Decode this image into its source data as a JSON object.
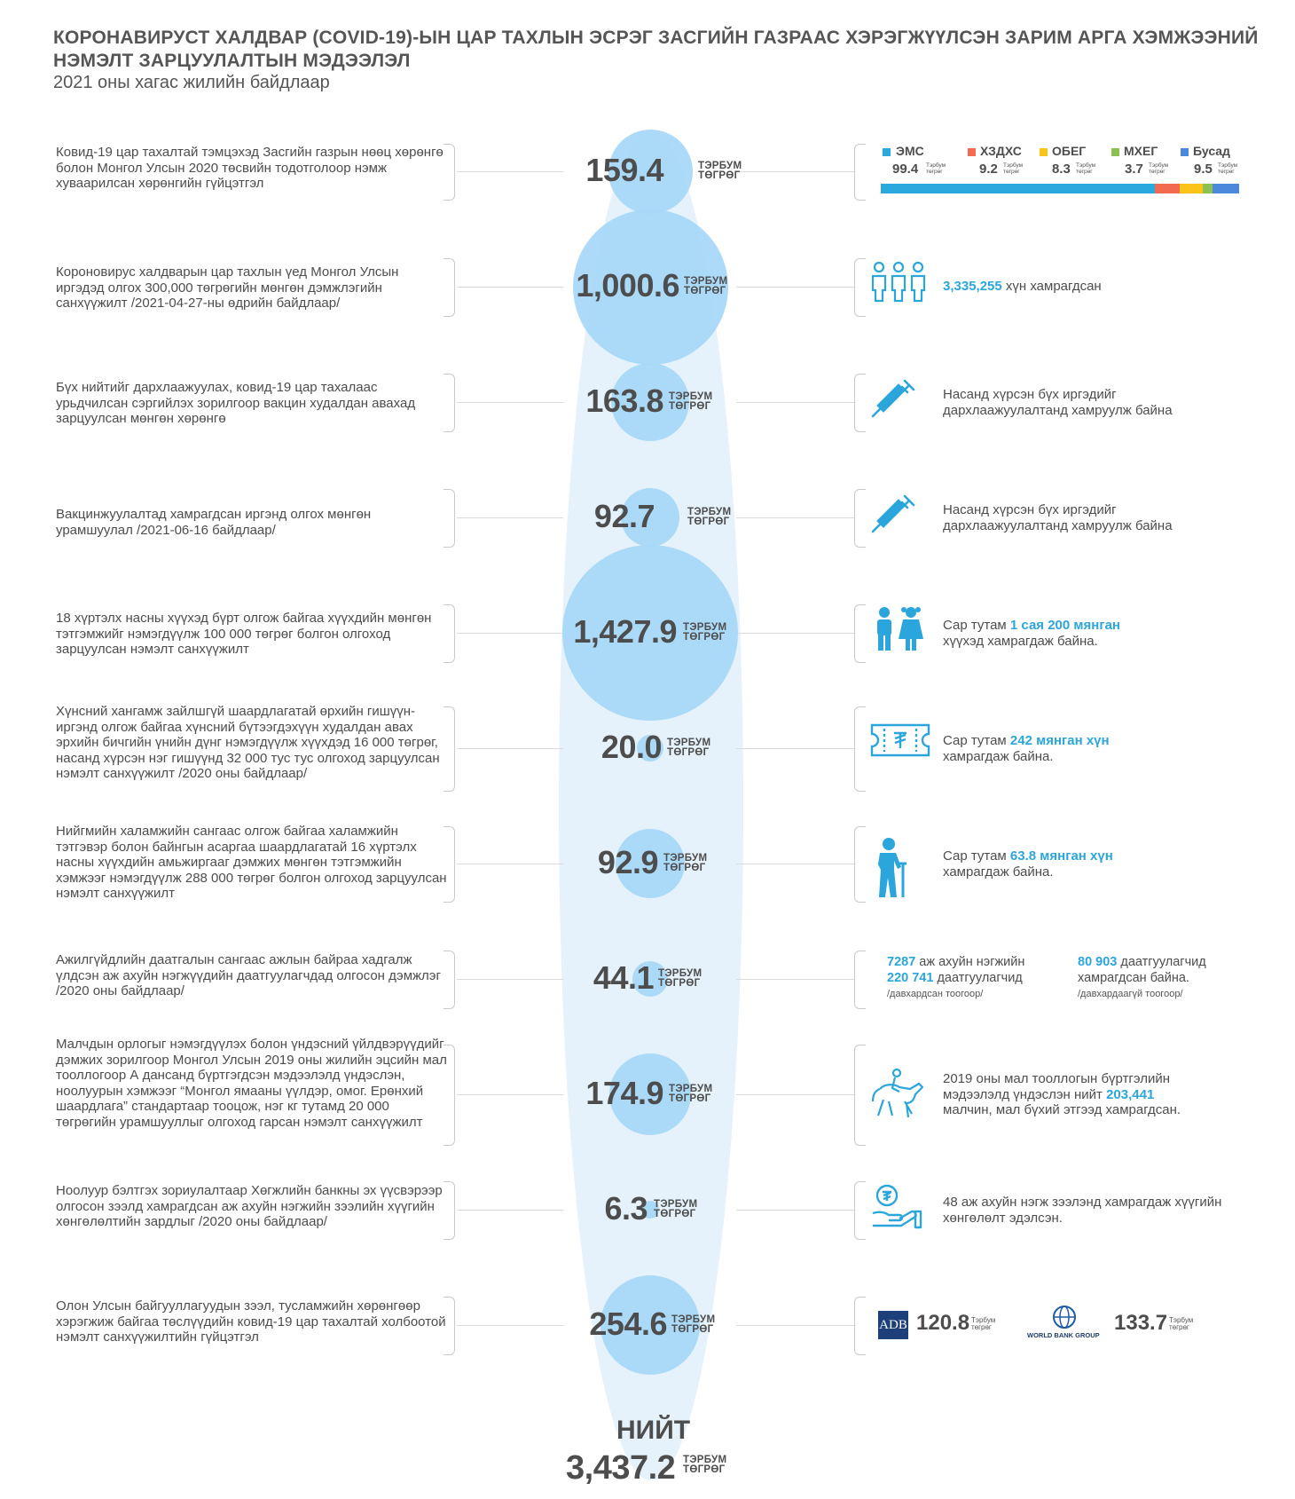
{
  "title": "КОРОНАВИРУСТ ХАЛДВАР (COVID-19)-ЫН ЦАР ТАХЛЫН ЭСРЭГ ЗАСГИЙН ГАЗРААС ХЭРЭГЖҮҮЛСЭН ЗАРИМ АРГА ХЭМЖЭЭНИЙ НЭМЭЛТ ЗАРЦУУЛАЛТЫН МЭДЭЭЛЭЛ",
  "subtitle": "2021 оны хагас жилийн байдлаар",
  "unit_top": "ТЭРБУМ",
  "unit_bottom": "ТӨГРӨГ",
  "unit_small_top": "Тэрбум",
  "unit_small_bottom": "төгрөг",
  "colors": {
    "accent": "#2ba6dc",
    "bubble": "#a8d8f8",
    "ellipse": "#e5f2fb",
    "text": "#4d4d4d"
  },
  "rows": [
    {
      "desc": "Ковид-19 цар тахалтай тэмцэхэд Засгийн газрын нөөц хөрөнгө болон Монгол Улсын 2020 төсвийн тодотголоор нэмж хуваарилсан хөрөнгийн гүйцэтгэл",
      "value": "159.4",
      "amount": 159.4
    },
    {
      "desc": "Короновирус халдварын цар тахлын үед Монгол Улсын иргэдэд олгох 300,000 төгрөгийн мөнгөн дэмжлэгийн санхүүжилт /2021-04-27-ны өдрийн байдлаар/",
      "value": "1,000.6",
      "amount": 1000.6,
      "right_hl": "3,335,255",
      "right_text": " хүн хамрагдсан",
      "icon": "people-icon"
    },
    {
      "desc": "Бүх нийтийг дархлаажуулах, ковид-19 цар тахалаас урьдчилсан сэргийлэх зорилгоор вакцин худалдан авахад зарцуулсан мөнгөн хөрөнгө",
      "value": "163.8",
      "amount": 163.8,
      "right_text": "Насанд хүрсэн бүх иргэдийг дархлаажуулалтанд хамруулж байна",
      "icon": "syringe-icon"
    },
    {
      "desc": "Вакцинжуулалтад хамрагдсан иргэнд олгох мөнгөн урамшуулал /2021-06-16 байдлаар/",
      "value": "92.7",
      "amount": 92.7,
      "right_text": "Насанд хүрсэн бүх иргэдийг дархлаажуулалтанд хамруулж байна",
      "icon": "syringe-icon"
    },
    {
      "desc": "18 хүртэлх насны хүүхэд бүрт олгож байгаа хүүхдийн мөнгөн тэтгэмжийг нэмэгдүүлж 100 000 төгрөг болгон олгоход зарцуулсан нэмэлт санхүүжилт",
      "value": "1,427.9",
      "amount": 1427.9,
      "right_pre": "Сар тутам ",
      "right_hl": "1 сая 200 мянган",
      "right_text": "хүүхэд  хамрагдаж байна.",
      "icon": "children-icon"
    },
    {
      "desc": "Хүнсний хангамж зайлшгүй шаардлагатай өрхийн гишүүн-иргэнд олгож байгаа хүнсний бүтээгдэхүүн худалдан авах эрхийн бичгийн үнийн дүнг нэмэгдүүлж хүүхдэд 16 000 төгрөг, насанд хүрсэн нэг гишүүнд 32 000 тус тус олгоход зарцуулсан нэмэлт санхүүжилт /2020 оны байдлаар/",
      "value": "20.0",
      "amount": 20.0,
      "right_pre": "Сар тутам ",
      "right_hl": "242 мянган хүн",
      "right_text": "хамрагдаж байна.",
      "icon": "voucher-icon"
    },
    {
      "desc": "Нийгмийн халамжийн сангаас олгож байгаа халамжийн тэтгэвэр болон байнгын асаргаа шаардлагатай 16 хүртэлх насны хүүхдийн амьжиргааг дэмжих мөнгөн тэтгэмжийн хэмжээг нэмэгдүүлж  288 000 төгрөг болгон олгоход зарцуулсан нэмэлт санхүүжилт",
      "value": "92.9",
      "amount": 92.9,
      "right_pre": "Сар тутам ",
      "right_hl": "63.8 мянган хүн",
      "right_text": "хамрагдаж байна.",
      "icon": "elder-icon"
    },
    {
      "desc": "Ажилгүйдлийн даатгалын сангаас ажлын байраа хадгалж үлдсэн аж ахуйн нэгжүүдийн даатгуулагчдад олгосон дэмжлэг /2020 оны байдлаар/",
      "value": "44.1",
      "amount": 44.1,
      "ins": {
        "a_hl": "7287",
        "a_text": " аж ахуйн нэгжийн",
        "b_hl": "220 741",
        "b_text": " даатгуулагчид",
        "a_note": "/давхардсан тоогоор/",
        "c_hl": "80 903",
        "c_text": "  даатгуулагчид",
        "c_text2": "хамрагдсан байна.",
        "c_note": "/давхардаагүй тоогоор/"
      }
    },
    {
      "desc": "Малчдын орлогыг нэмэгдүүлэх болон үндэсний үйлдвэрүүдийг дэмжих зорилгоор Монгол Улсын 2019 оны жилийн эцсийн мал тооллогоор А дансанд бүртгэгдсэн мэдээлэлд үндэслэн, ноолуурын хэмжээг “Монгол ямааны үүлдэр, омог. Ерөнхий шаардлага” стандартаар тооцож, нэг кг тутамд 20 000 төгрөгийн урамшууллыг олгоход гарсан нэмэлт санхүүжилт",
      "value": "174.9",
      "amount": 174.9,
      "right_pre": "2019 оны мал тооллогын бүртгэлийн мэдээлэлд үндэслэн нийт ",
      "right_hl": "203,441",
      "right_text": "малчин, мал бүхий этгээд хамрагдсан.",
      "icon": "horse-rider-icon"
    },
    {
      "desc": "Ноолуур бэлтгэх зориулалтаар Хөгжлийн банкны эх үүсвэрээр олгосон зээлд хамрагдсан аж ахуйн нэгжийн зээлийн хүүгийн хөнгөлөлтийн зардлыг /2020 оны байдлаар/",
      "value": "6.3",
      "amount": 6.3,
      "right_text": "48 аж ахуйн нэгж зээлэнд хамрагдаж хүүгийн хөнгөлөлт эдэлсэн.",
      "icon": "coin-hand-icon"
    },
    {
      "desc": "Олон Улсын байгууллагуудын зээл, тусламжийн хөрөнгөөр хэрэгжиж байгаа төслүүдийн ковид-19 цар тахалтай холбоотой нэмэлт санхүүжилтийн гүйцэтгэл",
      "value": "254.6",
      "amount": 254.6,
      "donors": {
        "adb_label": "ADB",
        "adb_value": "120.8",
        "wb_label": "WORLD BANK GROUP",
        "wb_value": "133.7"
      }
    }
  ],
  "budget_breakdown": {
    "items": [
      {
        "label": "ЭМС",
        "value": "99.4",
        "amount": 99.4,
        "color": "#2aa9de"
      },
      {
        "label": "ХЗДХС",
        "value": "9.2",
        "amount": 9.2,
        "color": "#f26a4f"
      },
      {
        "label": "ОБЕГ",
        "value": "8.3",
        "amount": 8.3,
        "color": "#fcc419"
      },
      {
        "label": "МХЕГ",
        "value": "3.7",
        "amount": 3.7,
        "color": "#8cc152"
      },
      {
        "label": "Бусад",
        "value": "9.5",
        "amount": 9.5,
        "color": "#4a89dc"
      }
    ]
  },
  "total": {
    "label": "НИЙТ",
    "value": "3,437.2"
  }
}
